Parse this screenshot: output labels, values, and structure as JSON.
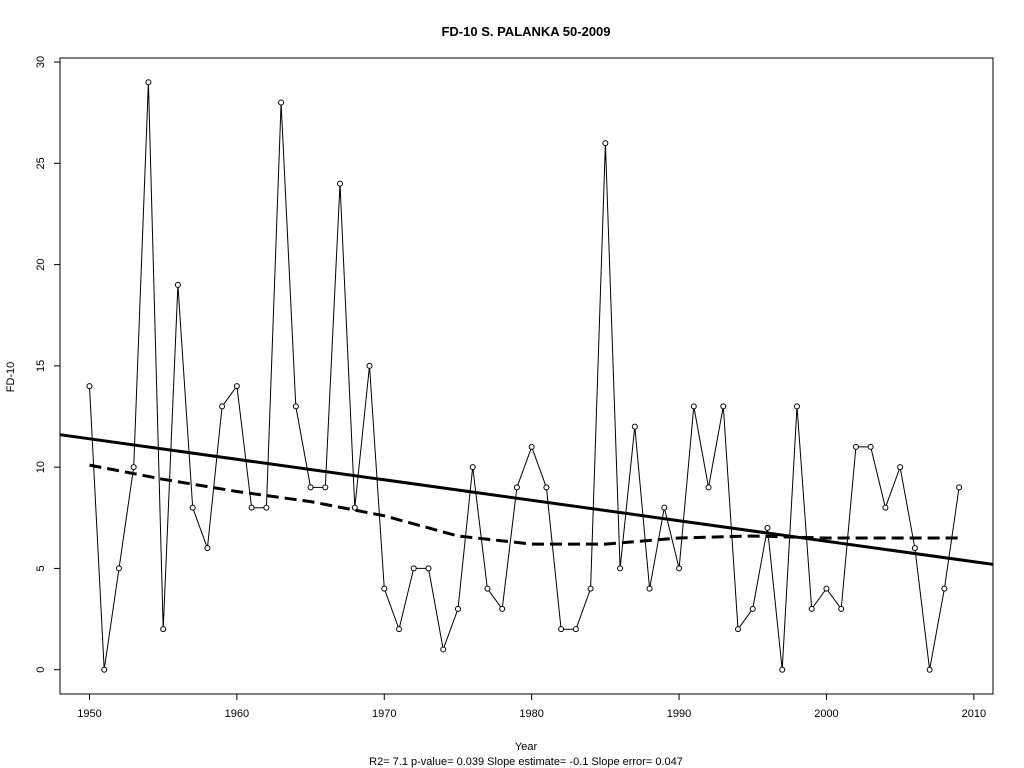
{
  "chart_data": {
    "type": "line",
    "title": "FD-10   S. PALANKA 50-2009",
    "xlabel": "Year",
    "ylabel": "FD-10",
    "footnote": "R2= 7.1  p-value= 0.039  Slope estimate= -0.1  Slope error= 0.047",
    "xlim": [
      1948,
      2011.3
    ],
    "ylim": [
      -1.2,
      30.2
    ],
    "x_ticks": [
      1950,
      1960,
      1970,
      1980,
      1990,
      2000,
      2010
    ],
    "y_ticks": [
      0,
      5,
      10,
      15,
      20,
      25,
      30
    ],
    "grid": false,
    "legend": "none",
    "colors": {
      "series": "#000000",
      "background": "#ffffff"
    },
    "series": [
      {
        "style": "line-with-open-circles",
        "x": [
          1950,
          1951,
          1952,
          1953,
          1954,
          1955,
          1956,
          1957,
          1958,
          1959,
          1960,
          1961,
          1962,
          1963,
          1964,
          1965,
          1966,
          1967,
          1968,
          1969,
          1970,
          1971,
          1972,
          1973,
          1974,
          1975,
          1976,
          1977,
          1978,
          1979,
          1980,
          1981,
          1982,
          1983,
          1984,
          1985,
          1986,
          1987,
          1988,
          1989,
          1990,
          1991,
          1992,
          1993,
          1994,
          1995,
          1996,
          1997,
          1998,
          1999,
          2000,
          2001,
          2002,
          2003,
          2004,
          2005,
          2006,
          2007,
          2008,
          2009
        ],
        "y": [
          14,
          0,
          5,
          10,
          29,
          2,
          19,
          8,
          6,
          13,
          14,
          8,
          8,
          28,
          13,
          9,
          9,
          24,
          8,
          15,
          4,
          2,
          5,
          5,
          1,
          3,
          10,
          4,
          3,
          9,
          11,
          9,
          2,
          2,
          4,
          26,
          5,
          12,
          4,
          8,
          5,
          13,
          9,
          13,
          2,
          3,
          7,
          0,
          13,
          3,
          4,
          3,
          11,
          11,
          8,
          10,
          6,
          0,
          4,
          9
        ]
      },
      {
        "style": "linear-trend-solid",
        "x": [
          1948,
          2011.3
        ],
        "y": [
          11.6,
          5.2
        ]
      },
      {
        "style": "smoothed-dashed",
        "x": [
          1950,
          1955,
          1960,
          1965,
          1970,
          1975,
          1980,
          1985,
          1990,
          1995,
          2000,
          2005,
          2009
        ],
        "y": [
          10.1,
          9.4,
          8.8,
          8.3,
          7.6,
          6.6,
          6.2,
          6.2,
          6.5,
          6.6,
          6.5,
          6.5,
          6.5
        ]
      }
    ]
  }
}
